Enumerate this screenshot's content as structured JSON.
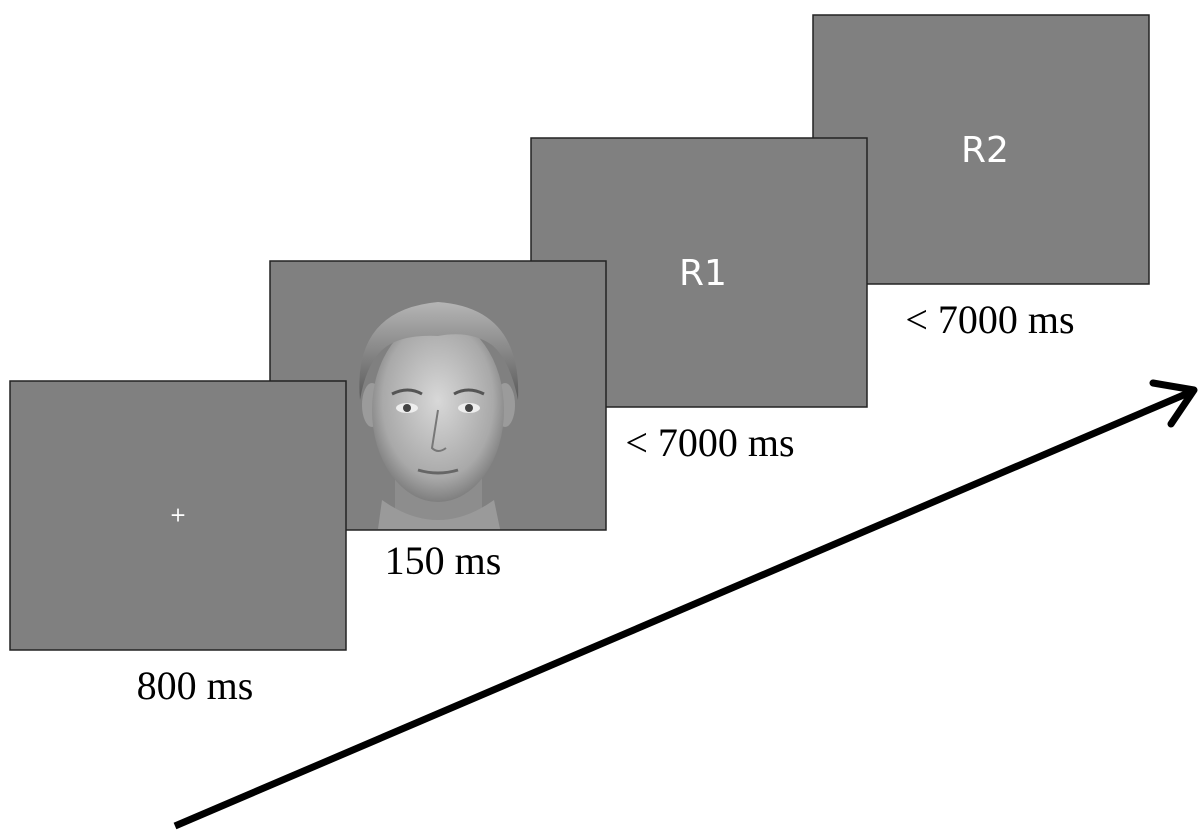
{
  "screens": [
    {
      "content": "+",
      "duration": "800 ms"
    },
    {
      "duration": "150 ms"
    },
    {
      "content": "R1",
      "duration": "< 7000 ms"
    },
    {
      "content": "R2",
      "duration": "< 7000 ms"
    }
  ]
}
